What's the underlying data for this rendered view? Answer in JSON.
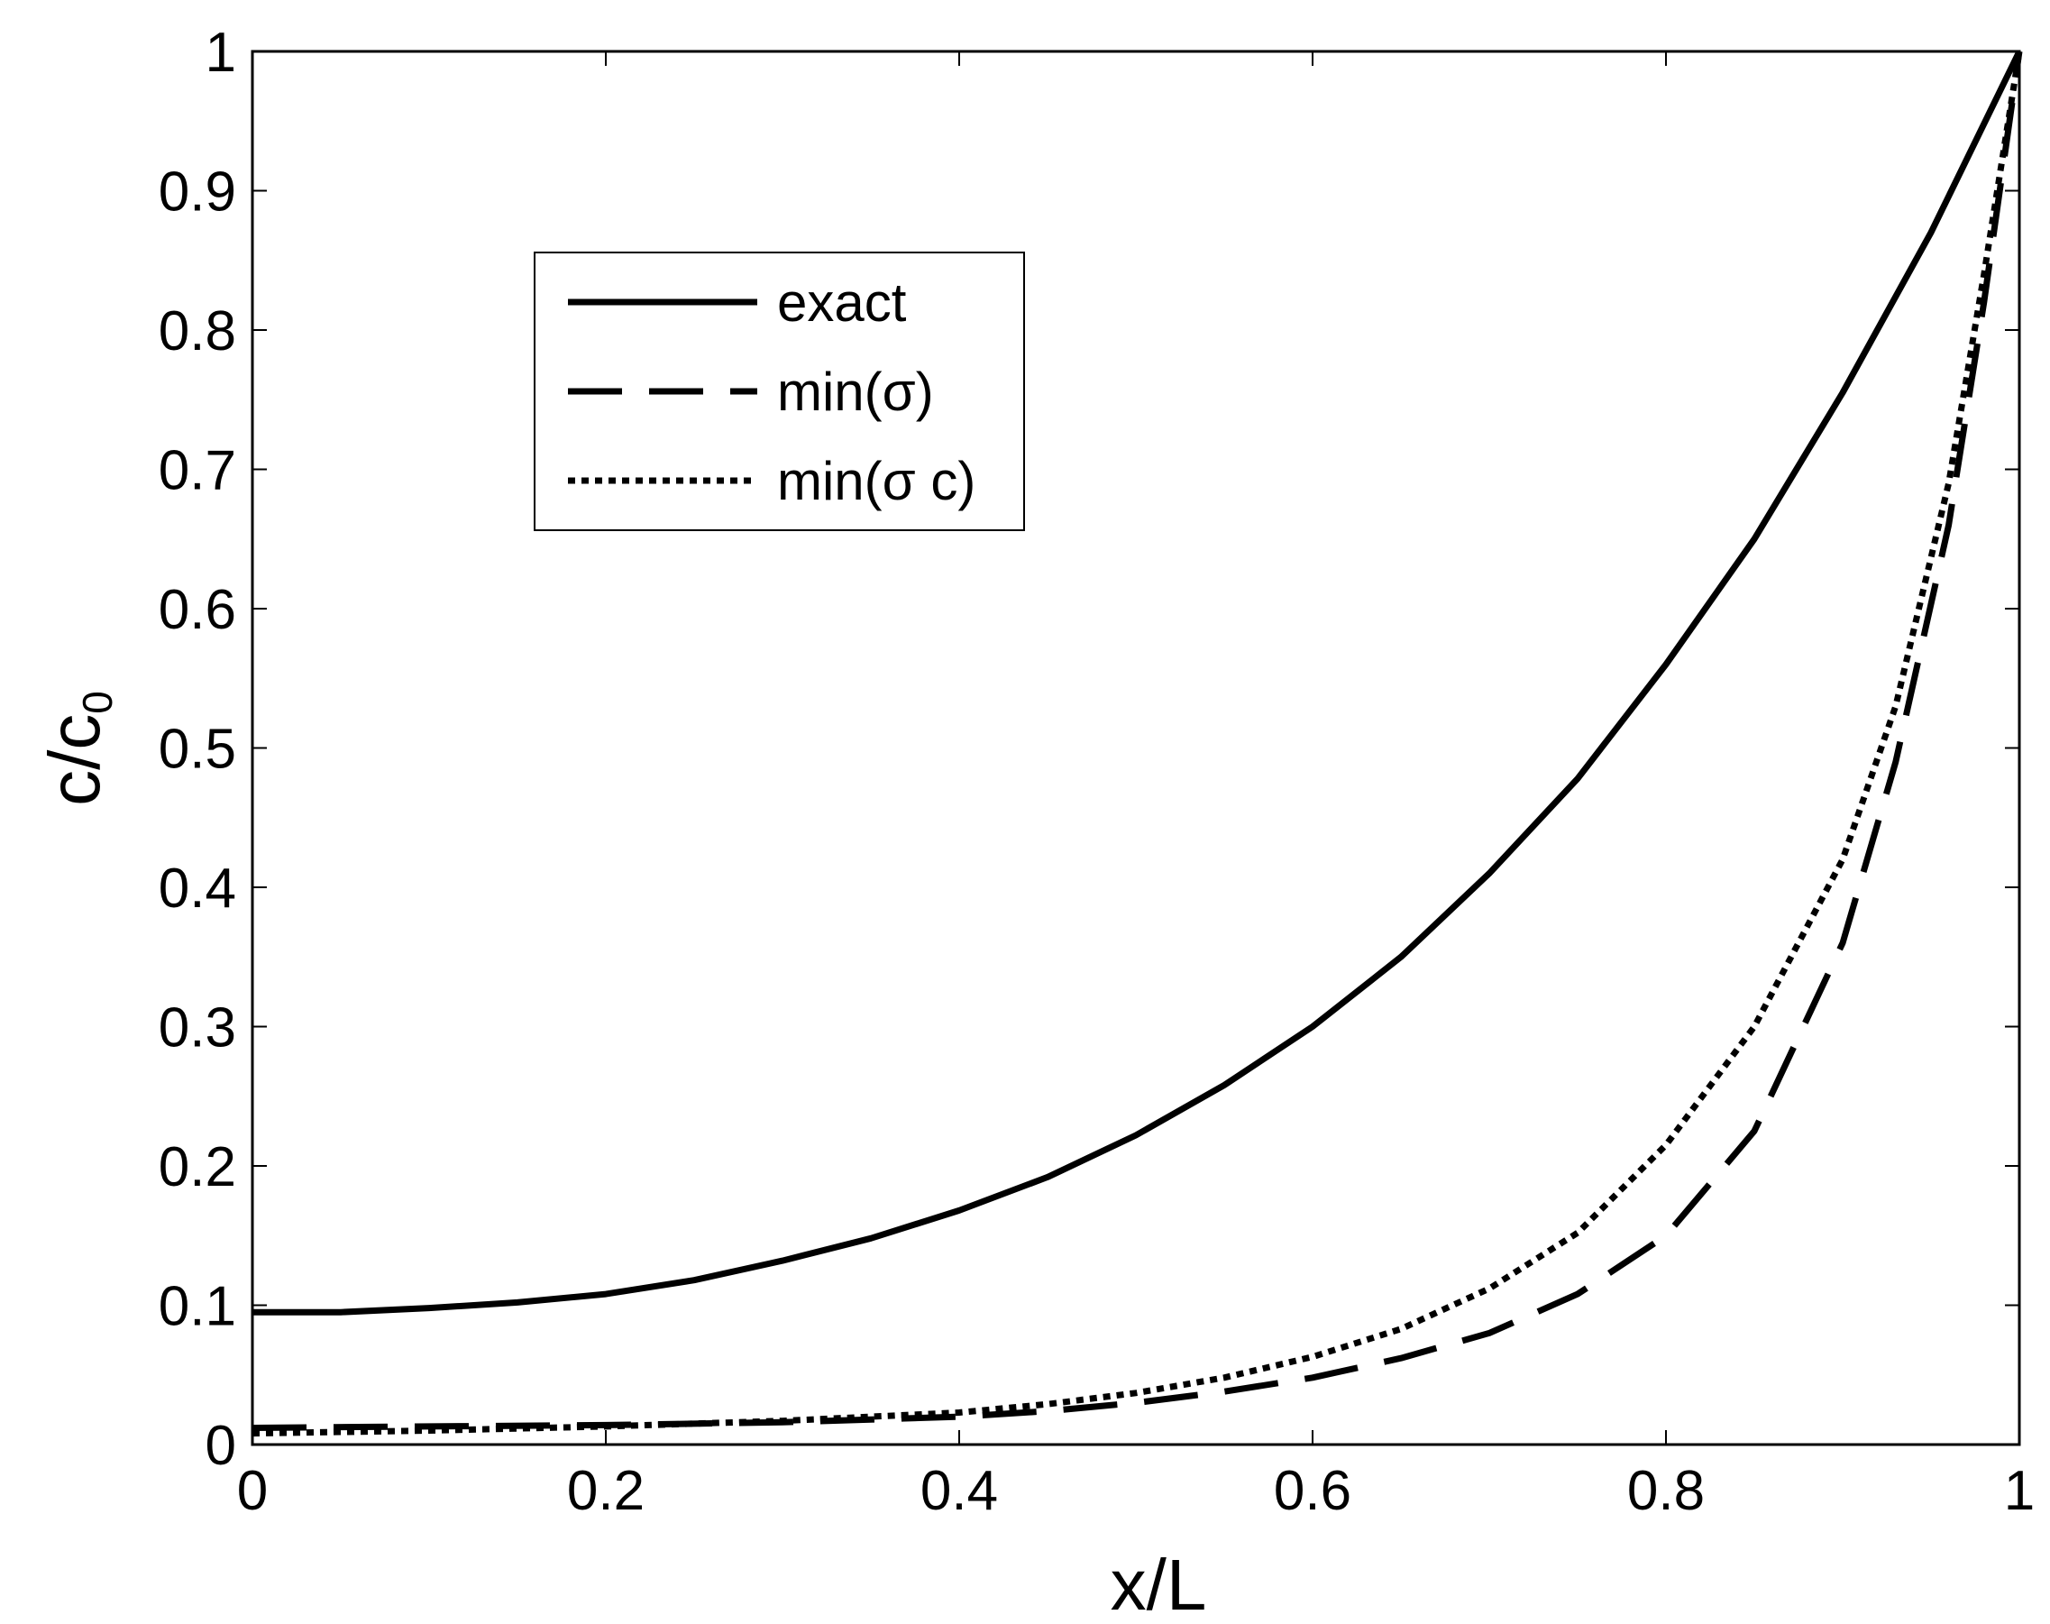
{
  "chart_data": {
    "type": "line",
    "title": "",
    "xlabel": "x/L",
    "ylabel": {
      "main": "c/c",
      "sub": "0"
    },
    "xlim": [
      0,
      1
    ],
    "ylim": [
      0,
      1
    ],
    "xticks": [
      0,
      0.2,
      0.4,
      0.6,
      0.8,
      1
    ],
    "yticks": [
      0,
      0.1,
      0.2,
      0.3,
      0.4,
      0.5,
      0.6,
      0.7,
      0.8,
      0.9,
      1
    ],
    "xtick_labels": [
      "0",
      "0.2",
      "0.4",
      "0.6",
      "0.8",
      "1"
    ],
    "ytick_labels": [
      "0",
      "0.1",
      "0.2",
      "0.3",
      "0.4",
      "0.5",
      "0.6",
      "0.7",
      "0.8",
      "0.9",
      "1"
    ],
    "grid": false,
    "legend_position": "upper-left",
    "series": [
      {
        "name": "exact",
        "style": "solid",
        "x": [
          0,
          0.05,
          0.1,
          0.15,
          0.2,
          0.25,
          0.3,
          0.35,
          0.4,
          0.45,
          0.5,
          0.55,
          0.6,
          0.65,
          0.7,
          0.75,
          0.8,
          0.85,
          0.9,
          0.95,
          1.0
        ],
        "y": [
          0.095,
          0.095,
          0.098,
          0.102,
          0.108,
          0.118,
          0.132,
          0.148,
          0.168,
          0.192,
          0.222,
          0.258,
          0.3,
          0.35,
          0.41,
          0.478,
          0.56,
          0.65,
          0.755,
          0.87,
          1.0
        ]
      },
      {
        "name": "min(σ)",
        "style": "dashed",
        "x": [
          0,
          0.1,
          0.2,
          0.3,
          0.4,
          0.45,
          0.5,
          0.55,
          0.6,
          0.65,
          0.7,
          0.75,
          0.8,
          0.85,
          0.9,
          0.93,
          0.96,
          0.98,
          1.0
        ],
        "y": [
          0.012,
          0.013,
          0.014,
          0.016,
          0.02,
          0.024,
          0.03,
          0.038,
          0.048,
          0.062,
          0.08,
          0.108,
          0.15,
          0.225,
          0.36,
          0.49,
          0.66,
          0.82,
          1.0
        ]
      },
      {
        "name": "min(σ c)",
        "style": "dotted",
        "x": [
          0,
          0.1,
          0.2,
          0.3,
          0.4,
          0.45,
          0.5,
          0.55,
          0.6,
          0.65,
          0.7,
          0.75,
          0.8,
          0.85,
          0.9,
          0.93,
          0.96,
          0.98,
          1.0
        ],
        "y": [
          0.008,
          0.01,
          0.013,
          0.017,
          0.023,
          0.029,
          0.037,
          0.048,
          0.063,
          0.083,
          0.112,
          0.152,
          0.215,
          0.3,
          0.42,
          0.53,
          0.69,
          0.84,
          1.0
        ]
      }
    ]
  },
  "legend": {
    "entries": [
      {
        "label": "exact",
        "style": "solid"
      },
      {
        "label": "min(σ)",
        "style": "dashed"
      },
      {
        "label": "min(σ c)",
        "style": "dotted"
      }
    ]
  }
}
